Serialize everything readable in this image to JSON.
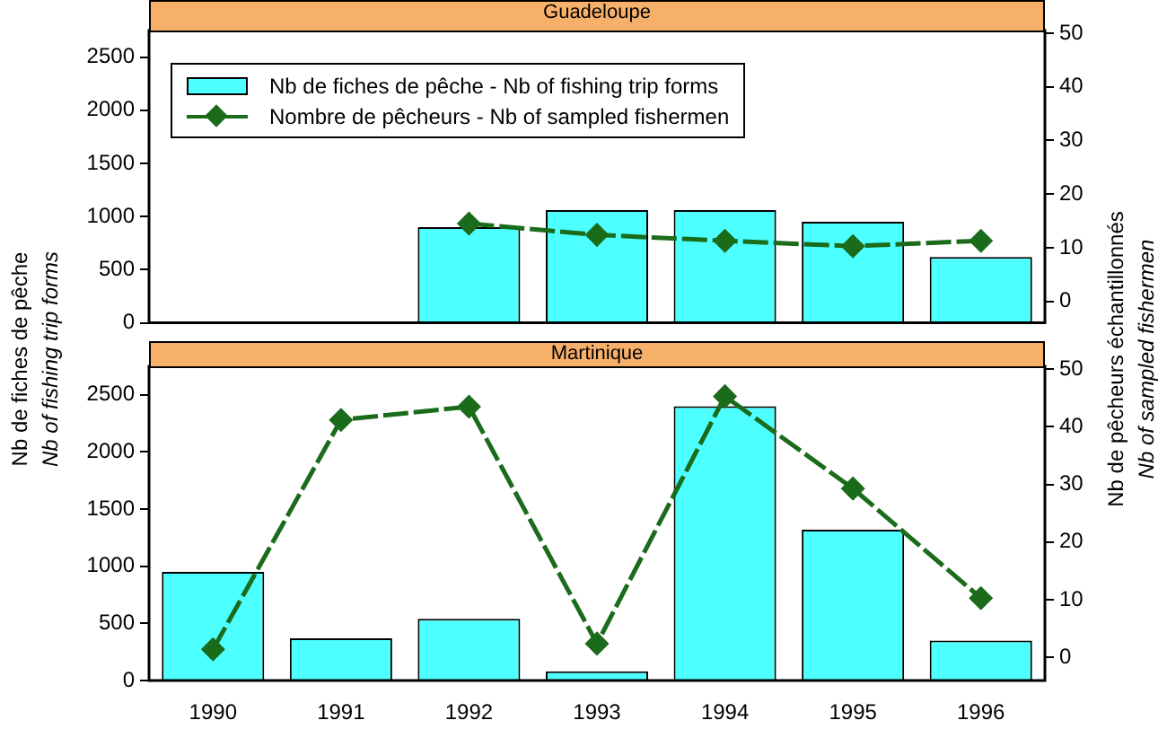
{
  "chart_data": [
    {
      "type": "bar",
      "title": "Guadeloupe",
      "categories": [
        "1990",
        "1991",
        "1992",
        "1993",
        "1994",
        "1995",
        "1996"
      ],
      "series": [
        {
          "name": "Nb de fiches de pêche - Nb of fishing trip forms",
          "color": "#4dffff",
          "values": [
            null,
            null,
            900,
            1060,
            1060,
            950,
            620
          ]
        },
        {
          "name": "Nombre de pêcheurs - Nb of sampled fishermen",
          "type": "line",
          "axis": "y2",
          "color": "#1a6b1a",
          "values": [
            null,
            null,
            14.5,
            12.4,
            11.3,
            10.3,
            11.3
          ]
        }
      ],
      "ylim": [
        0,
        2750
      ],
      "yticks": [
        0,
        500,
        1000,
        1500,
        2000,
        2500
      ],
      "y2lim": [
        -4,
        50.5
      ],
      "y2ticks": [
        0,
        10,
        20,
        30,
        40,
        50
      ],
      "ylabel": "Nb de fiches de pêche\nNb of fishing trip forms",
      "y2label": "Nb de pêcheurs échantillonnés\nNb of sampled fishermen",
      "legend": "top left",
      "marker": "diamond",
      "line_style": "dashed",
      "tick_labels": "y"
    },
    {
      "type": "bar",
      "title": "Martinique",
      "categories": [
        "1990",
        "1991",
        "1992",
        "1993",
        "1994",
        "1995",
        "1996"
      ],
      "series": [
        {
          "color": "#4dffff",
          "values": [
            950,
            370,
            540,
            80,
            2400,
            1320,
            350
          ]
        },
        {
          "type": "line",
          "axis": "y2",
          "color": "#1a6b1a",
          "values": [
            1.4,
            41.2,
            43.5,
            2.4,
            45.3,
            29.3,
            10.3
          ]
        }
      ],
      "ylim": [
        0,
        2750
      ],
      "yticks": [
        0,
        500,
        1000,
        1500,
        2000,
        2500
      ],
      "y2lim": [
        -4,
        50.5
      ],
      "y2ticks": [
        0,
        10,
        20,
        30,
        40,
        50
      ],
      "marker": "diamond",
      "line_style": "dashed"
    }
  ]
}
